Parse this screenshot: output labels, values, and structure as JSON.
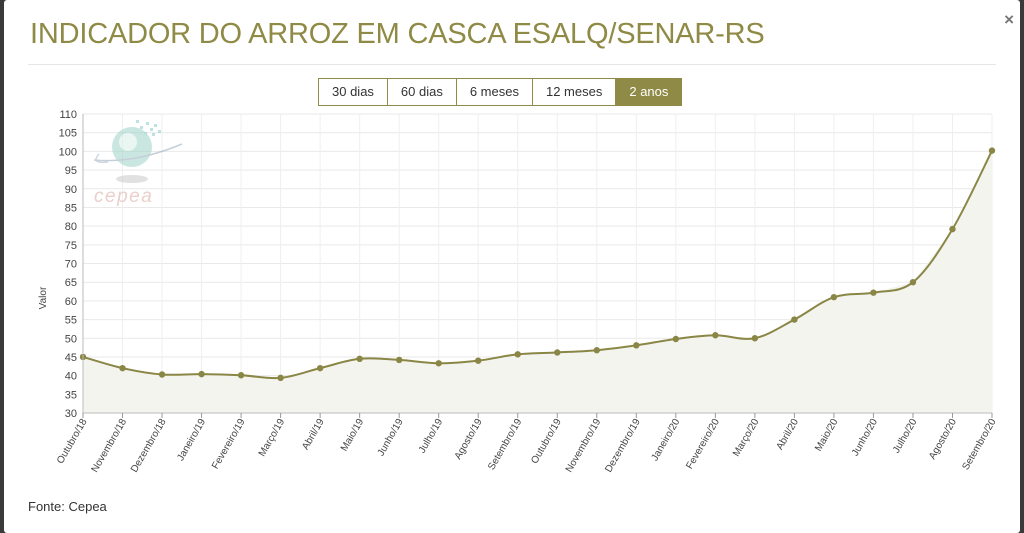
{
  "modal": {
    "title": "INDICADOR DO ARROZ EM CASCA ESALQ/SENAR-RS",
    "close": "×"
  },
  "range_buttons": {
    "b30d": "30 dias",
    "b60d": "60 dias",
    "b6m": "6 meses",
    "b12m": "12 meses",
    "b2a": "2 anos",
    "active": "2 anos"
  },
  "watermark": {
    "text": "cepea"
  },
  "source": "Fonte: Cepea",
  "colors": {
    "accent": "#8f8a45",
    "line": "#8a8645",
    "area": "#f4f4ef",
    "grid": "#e9e9e9"
  },
  "chart_data": {
    "type": "area",
    "title": "",
    "xlabel": "",
    "ylabel": "Valor",
    "ylim": [
      30,
      110
    ],
    "yticks": [
      30,
      35,
      40,
      45,
      50,
      55,
      60,
      65,
      70,
      75,
      80,
      85,
      90,
      95,
      100,
      105,
      110
    ],
    "grid": true,
    "legend": "none",
    "categories": [
      "Outubro/18",
      "Novembro/18",
      "Dezembro/18",
      "Janeiro/19",
      "Fevereiro/19",
      "Março/19",
      "Abril/19",
      "Maio/19",
      "Junho/19",
      "Julho/19",
      "Agosto/19",
      "Setembro/19",
      "Outubro/19",
      "Novembro/19",
      "Dezembro/19",
      "Janeiro/20",
      "Fevereiro/20",
      "Março/20",
      "Abril/20",
      "Maio/20",
      "Junho/20",
      "Julho/20",
      "Agosto/20",
      "Setembro/20"
    ],
    "series": [
      {
        "values": [
          45,
          42,
          40.3,
          40.4,
          40.1,
          39.4,
          42,
          44.5,
          44.2,
          43.3,
          44,
          45.7,
          46.2,
          46.8,
          48.1,
          49.8,
          50.8,
          50,
          55,
          61,
          62.2,
          65,
          79.2,
          100.2
        ]
      }
    ]
  }
}
